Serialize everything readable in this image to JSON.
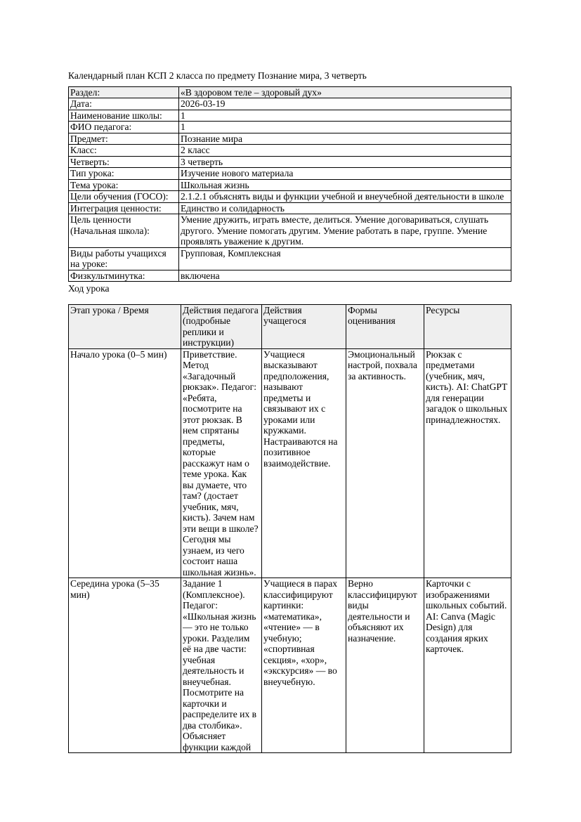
{
  "page": {
    "title": "Календарный план КСП 2 класса по предмету Познание мира, 3 четверть",
    "section_heading": "Ход урока"
  },
  "colors": {
    "header_bg": "#efefef",
    "border": "#000000",
    "text": "#000000",
    "page_bg": "#ffffff"
  },
  "info_table": {
    "rows": [
      {
        "label": "Раздел:",
        "value": "«В здоровом теле – здоровый дух»",
        "highlight": true
      },
      {
        "label": "Дата:",
        "value": "2026-03-19",
        "highlight": false
      },
      {
        "label": "Наименование школы:",
        "value": "1",
        "highlight": false
      },
      {
        "label": "ФИО педагога:",
        "value": "1",
        "highlight": false
      },
      {
        "label": "Предмет:",
        "value": "Познание мира",
        "highlight": false
      },
      {
        "label": "Класс:",
        "value": "2 класс",
        "highlight": false
      },
      {
        "label": "Четверть:",
        "value": "3 четверть",
        "highlight": false
      },
      {
        "label": "Тип урока:",
        "value": "Изучение нового материала",
        "highlight": false
      },
      {
        "label": "Тема урока:",
        "value": "Школьная жизнь",
        "highlight": false
      },
      {
        "label": "Цели обучения (ГОСО):",
        "value": "2.1.2.1 объяснять виды и функции учебной и внеучебной деятельности в школе",
        "highlight": false
      },
      {
        "label": "Интеграция ценности:",
        "value": "Единство и солидарность",
        "highlight": false
      },
      {
        "label": "Цель ценности (Начальная школа):",
        "value": "Умение дружить, играть вместе, делиться. Умение договариваться, слушать другого. Умение помогать другим. Умение работать в паре, группе. Умение проявлять уважение к другим.",
        "highlight": false
      },
      {
        "label": "Виды работы учащихся на уроке:",
        "value": "Групповая, Комплексная",
        "highlight": false
      },
      {
        "label": "Физкультминутка:",
        "value": "включена",
        "highlight": false
      }
    ]
  },
  "lesson_table": {
    "headers": [
      "Этап урока / Время",
      "Действия педагога (подробные реплики и инструкции)",
      "Действия учащегося",
      "Формы оценивания",
      "Ресурсы"
    ],
    "rows": [
      {
        "stage": "Начало урока (0–5 мин)",
        "teacher": "Приветствие. Метод «Загадочный рюкзак». Педагог: «Ребята, посмотрите на этот рюкзак. В нем спрятаны предметы, которые расскажут нам о теме урока. Как вы думаете, что там? (достает учебник, мяч, кисть). Зачем нам эти вещи в школе? Сегодня мы узнаем, из чего состоит наша школьная жизнь».",
        "student": "Учащиеся высказывают предположения, называют предметы и связывают их с уроками или кружками. Настраиваются на позитивное взаимодействие.",
        "assessment": "Эмоциональный настрой, похвала за активность.",
        "resources": "Рюкзак с предметами (учебник, мяч, кисть). AI: ChatGPT для генерации загадок о школьных принадлежностях."
      },
      {
        "stage": "Середина урока (5–35 мин)",
        "teacher": "Задание 1 (Комплексное). Педагог: «Школьная жизнь — это не только уроки. Разделим её на две части: учебная деятельность и внеучебная. Посмотрите на карточки и распределите их в два столбика». Объясняет функции каждой",
        "student": "Учащиеся в парах классифицируют картинки: «математика», «чтение» — в учебную; «спортивная секция», «хор», «экскурсия» — во внеучебную.",
        "assessment": "Верно классифицируют виды деятельности и объясняют их назначение.",
        "resources": "Карточки с изображениями школьных событий. AI: Canva (Magic Design) для создания ярких карточек."
      }
    ]
  }
}
